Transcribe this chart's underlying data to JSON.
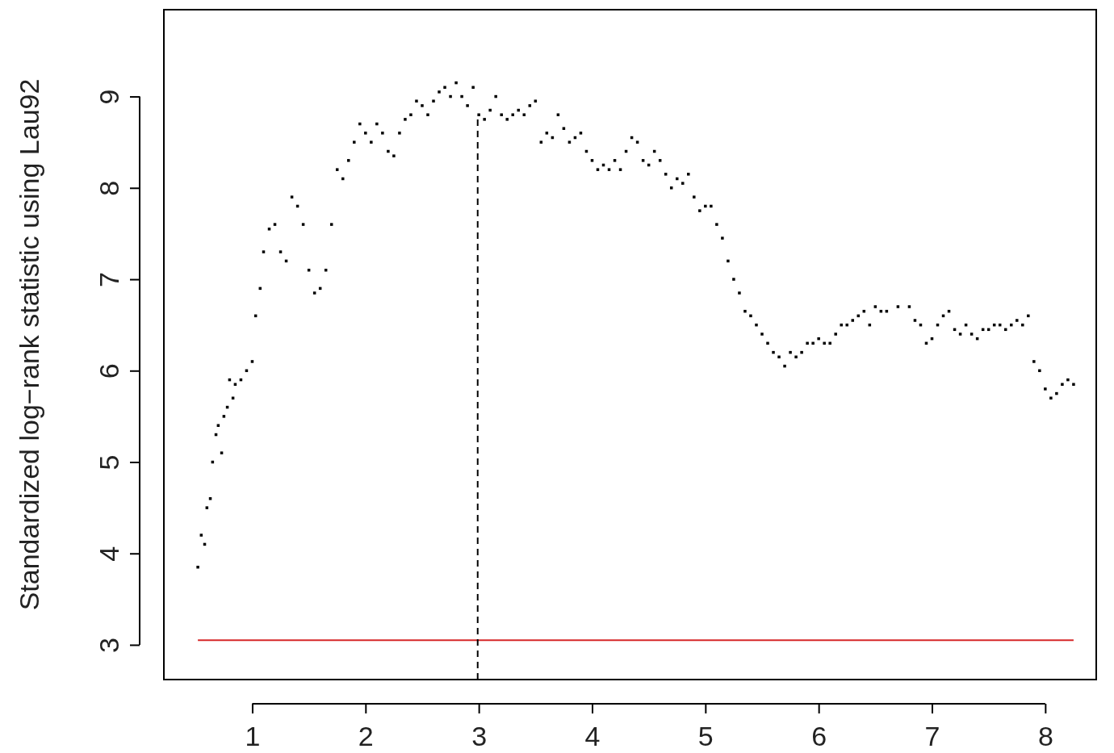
{
  "chart_data": {
    "type": "scatter",
    "ylabel": "Standardized log−rank statistic using Lau92",
    "xlim": [
      0.22,
      8.45
    ],
    "ylim": [
      2.62,
      9.95
    ],
    "xticks": [
      1,
      2,
      3,
      4,
      5,
      6,
      7,
      8
    ],
    "yticks": [
      3,
      4,
      5,
      6,
      7,
      8,
      9
    ],
    "series": [
      {
        "marker": "square",
        "color": "#000000",
        "x": [
          0.52,
          0.55,
          0.58,
          0.6,
          0.63,
          0.65,
          0.68,
          0.7,
          0.73,
          0.75,
          0.78,
          0.8,
          0.83,
          0.85,
          0.9,
          0.95,
          1.0,
          1.03,
          1.07,
          1.1,
          1.15,
          1.2,
          1.25,
          1.3,
          1.35,
          1.4,
          1.45,
          1.5,
          1.55,
          1.6,
          1.65,
          1.7,
          1.75,
          1.8,
          1.85,
          1.9,
          1.95,
          2.0,
          2.05,
          2.1,
          2.15,
          2.2,
          2.25,
          2.3,
          2.35,
          2.4,
          2.45,
          2.5,
          2.55,
          2.6,
          2.65,
          2.7,
          2.75,
          2.8,
          2.85,
          2.9,
          2.95,
          3.0,
          3.05,
          3.1,
          3.15,
          3.2,
          3.25,
          3.3,
          3.35,
          3.4,
          3.45,
          3.5,
          3.55,
          3.6,
          3.65,
          3.7,
          3.75,
          3.8,
          3.85,
          3.9,
          3.95,
          4.0,
          4.05,
          4.1,
          4.15,
          4.2,
          4.25,
          4.3,
          4.35,
          4.4,
          4.45,
          4.5,
          4.55,
          4.6,
          4.65,
          4.7,
          4.75,
          4.8,
          4.85,
          4.9,
          4.95,
          5.0,
          5.05,
          5.1,
          5.15,
          5.2,
          5.25,
          5.3,
          5.35,
          5.4,
          5.45,
          5.5,
          5.55,
          5.6,
          5.65,
          5.7,
          5.75,
          5.8,
          5.85,
          5.9,
          5.95,
          6.0,
          6.05,
          6.1,
          6.15,
          6.2,
          6.25,
          6.3,
          6.35,
          6.4,
          6.45,
          6.5,
          6.55,
          6.6,
          6.7,
          6.8,
          6.85,
          6.9,
          6.95,
          7.0,
          7.05,
          7.1,
          7.15,
          7.2,
          7.25,
          7.3,
          7.35,
          7.4,
          7.45,
          7.5,
          7.55,
          7.6,
          7.65,
          7.7,
          7.75,
          7.8,
          7.85,
          7.9,
          7.95,
          8.0,
          8.05,
          8.1,
          8.15,
          8.2,
          8.25
        ],
        "values": [
          3.85,
          4.2,
          4.1,
          4.5,
          4.6,
          5.0,
          5.3,
          5.4,
          5.1,
          5.5,
          5.6,
          5.9,
          5.7,
          5.85,
          5.9,
          6.0,
          6.1,
          6.6,
          6.9,
          7.3,
          7.55,
          7.6,
          7.3,
          7.2,
          7.9,
          7.8,
          7.6,
          7.1,
          6.85,
          6.9,
          7.1,
          7.6,
          8.2,
          8.1,
          8.3,
          8.5,
          8.7,
          8.6,
          8.5,
          8.7,
          8.6,
          8.4,
          8.35,
          8.6,
          8.75,
          8.8,
          8.95,
          8.9,
          8.8,
          8.95,
          9.05,
          9.1,
          9.0,
          9.15,
          9.0,
          8.9,
          9.1,
          8.8,
          8.75,
          8.85,
          9.0,
          8.8,
          8.75,
          8.8,
          8.85,
          8.8,
          8.9,
          8.95,
          8.5,
          8.6,
          8.55,
          8.8,
          8.65,
          8.5,
          8.55,
          8.6,
          8.4,
          8.3,
          8.2,
          8.25,
          8.2,
          8.3,
          8.2,
          8.4,
          8.55,
          8.5,
          8.3,
          8.25,
          8.4,
          8.3,
          8.15,
          8.0,
          8.1,
          8.05,
          8.15,
          7.9,
          7.75,
          7.8,
          7.8,
          7.6,
          7.45,
          7.2,
          7.0,
          6.85,
          6.65,
          6.6,
          6.5,
          6.4,
          6.3,
          6.2,
          6.15,
          6.05,
          6.2,
          6.15,
          6.2,
          6.3,
          6.3,
          6.35,
          6.3,
          6.3,
          6.4,
          6.5,
          6.5,
          6.55,
          6.6,
          6.65,
          6.5,
          6.7,
          6.65,
          6.65,
          6.7,
          6.7,
          6.55,
          6.5,
          6.3,
          6.35,
          6.5,
          6.6,
          6.65,
          6.45,
          6.4,
          6.5,
          6.4,
          6.35,
          6.45,
          6.45,
          6.5,
          6.5,
          6.45,
          6.5,
          6.55,
          6.5,
          6.6,
          6.1,
          6.0,
          5.8,
          5.7,
          5.75,
          5.85,
          5.9,
          5.85
        ]
      },
      {
        "type": "line",
        "color": "#d62728",
        "x": [
          0.52,
          8.25
        ],
        "values": [
          3.05,
          3.05
        ],
        "line_style": "solid"
      },
      {
        "type": "line",
        "color": "#000000",
        "x": [
          2.99,
          2.99
        ],
        "values": [
          2.62,
          8.75
        ],
        "line_style": "dashed"
      }
    ]
  }
}
